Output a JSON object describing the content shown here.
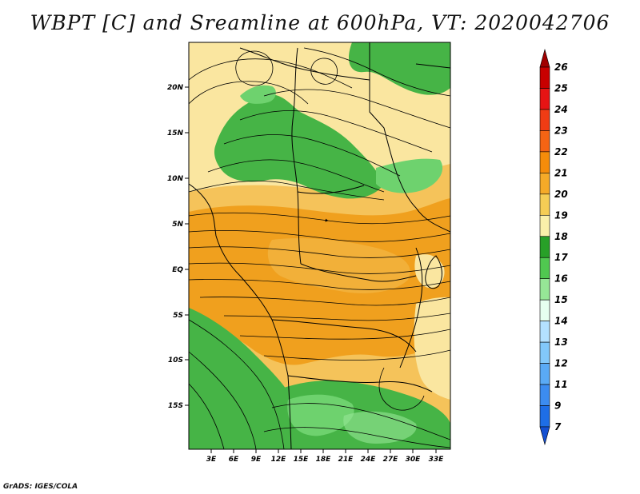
{
  "title": "WBPT [C] and Sreamline at 600hPa, VT: 2020042706",
  "credit": "GrADS: IGES/COLA",
  "map": {
    "lat_ticks": [
      "20N",
      "15N",
      "10N",
      "5N",
      "EQ",
      "5S",
      "10S",
      "15S"
    ],
    "lon_ticks": [
      "3E",
      "6E",
      "9E",
      "12E",
      "15E",
      "18E",
      "21E",
      "24E",
      "27E",
      "30E",
      "33E"
    ]
  },
  "colorbar": {
    "levels": [
      "26",
      "25",
      "24",
      "23",
      "22",
      "21",
      "20",
      "19",
      "18",
      "17",
      "16",
      "15",
      "14",
      "13",
      "12",
      "11",
      "9",
      "7"
    ],
    "colors": [
      "#a00000",
      "#c80000",
      "#e61414",
      "#f03c14",
      "#f56414",
      "#f58c0a",
      "#f5aa28",
      "#f5cd55",
      "#faf0aa",
      "#28a028",
      "#50c850",
      "#96e696",
      "#e6fff0",
      "#b4e1ff",
      "#82c8fa",
      "#5aaaf5",
      "#3c8cf0",
      "#1e6ee6",
      "#1450d2"
    ]
  },
  "field_colors": {
    "warm_high": "#f0a01e",
    "warm_mid": "#f5c35a",
    "warm_low": "#fae6a0",
    "cool_high": "#46b446",
    "cool_mid": "#6ed26e",
    "coast": "#000000",
    "streamline": "#000000"
  }
}
